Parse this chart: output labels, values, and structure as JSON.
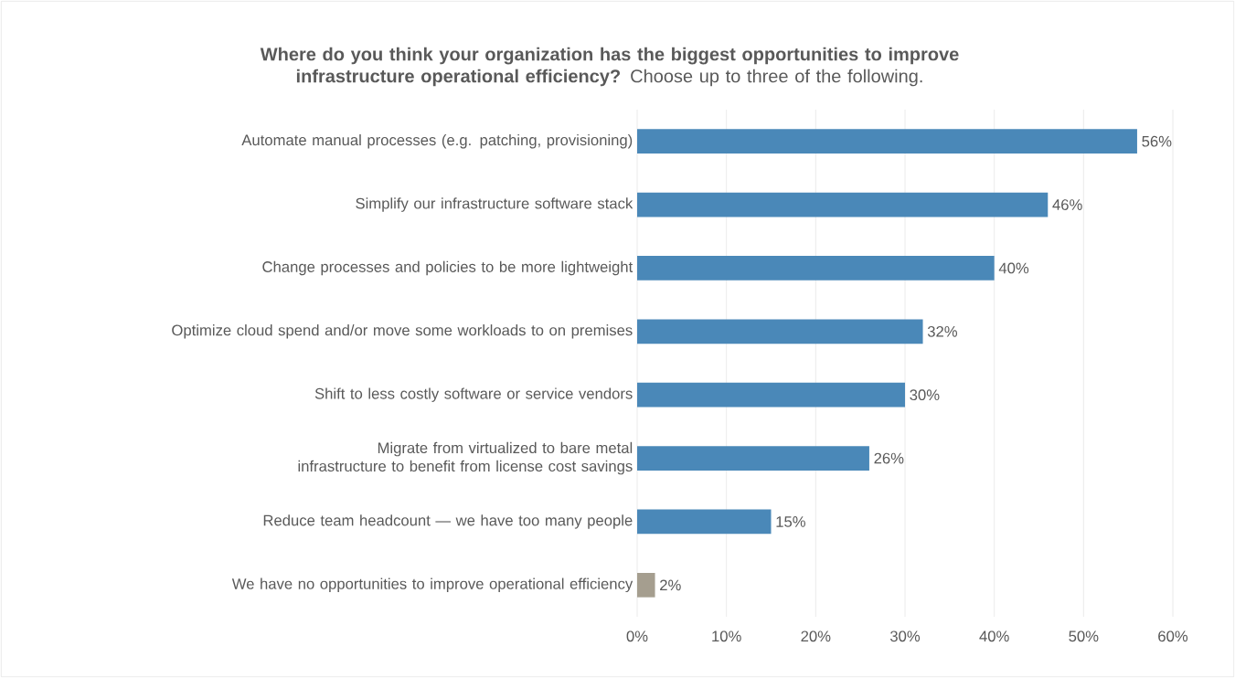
{
  "chart_data": {
    "type": "bar",
    "orientation": "horizontal",
    "title": "**Where do you think your organization has the biggest opportunities to improve infrastructure operational efficiency?** Choose up to three of the following.",
    "categories": [
      "Automate manual processes (e.g. patching, provisioning)",
      "Simplify our infrastructure software stack",
      "Change processes and policies to be more lightweight",
      "Optimize cloud spend and/or move some workloads to on premises",
      "Shift to less costly software or service vendors",
      "Migrate from virtualized to bare metal infrastructure to benefit from license cost savings",
      "Reduce team headcount — we have too many people",
      "We have no opportunities to improve operational efficiency"
    ],
    "values": [
      56,
      46,
      40,
      32,
      30,
      26,
      15,
      2
    ],
    "value_labels": [
      "56%",
      "46%",
      "40%",
      "32%",
      "30%",
      "26%",
      "15%",
      "2%"
    ],
    "colors": [
      "#4a88b8",
      "#4a88b8",
      "#4a88b8",
      "#4a88b8",
      "#4a88b8",
      "#4a88b8",
      "#4a88b8",
      "#a59e8f"
    ],
    "xlim": [
      0,
      60
    ],
    "xticks": [
      {
        "value": 0,
        "label": "0%"
      },
      {
        "value": 10,
        "label": "10%"
      },
      {
        "value": 20,
        "label": "20%"
      },
      {
        "value": 30,
        "label": "30%"
      },
      {
        "value": 40,
        "label": "40%"
      },
      {
        "value": 50,
        "label": "50%"
      },
      {
        "value": 60,
        "label": "60%"
      }
    ],
    "grid": "x"
  }
}
